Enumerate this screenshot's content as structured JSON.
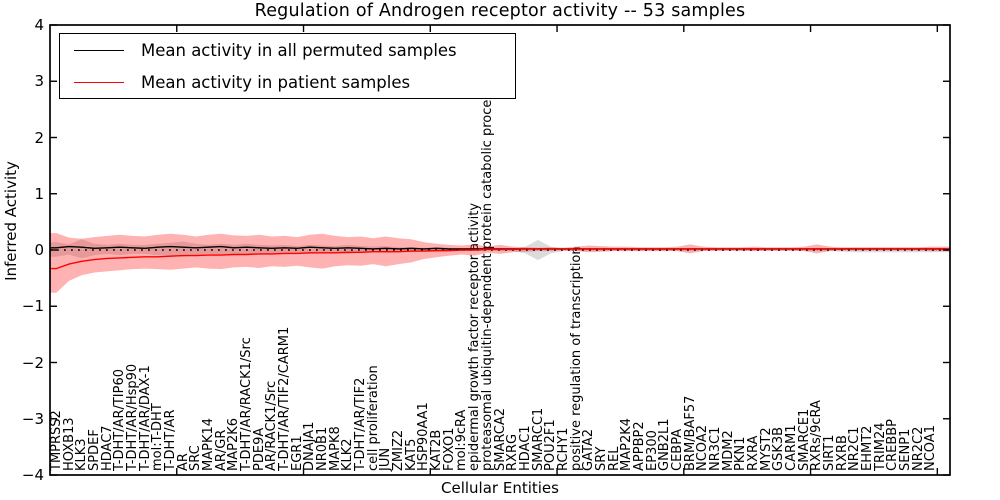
{
  "title": "Regulation of Androgen receptor activity -- 53 samples",
  "axes": {
    "x_label": "Cellular Entities",
    "y_label": "Inferred Activity",
    "y_ticks": [
      "4",
      "3",
      "2",
      "1",
      "0",
      "−1",
      "−2",
      "−3",
      "−4"
    ]
  },
  "legend": {
    "items": [
      {
        "label": "Mean activity in all permuted samples",
        "color": "#000000"
      },
      {
        "label": "Mean activity in patient samples",
        "color": "#ff0000"
      }
    ]
  },
  "chart_data": {
    "type": "line",
    "title": "Regulation of Androgen receptor activity -- 53 samples",
    "xlabel": "Cellular Entities",
    "ylabel": "Inferred Activity",
    "ylim": [
      -4,
      4
    ],
    "x_tick_label_rotation": 90,
    "x_major_tick_every": 10,
    "grid": false,
    "legend_position": "upper left",
    "categories": [
      "TMPRSS2",
      "HOXB13",
      "KLK3",
      "SPDEF",
      "HDAC7",
      "T-DHT/AR/TIP60",
      "T-DHT/AR/Hsp90",
      "T-DHT/AR/DAX-1",
      "mol:T-DHT",
      "T-DHT/AR",
      "AR",
      "SRC",
      "MAPK14",
      "AR/GR",
      "MAP2K6",
      "T-DHT/AR/RACK1/Src",
      "PDE9A",
      "AR/RACK1/Src",
      "T-DHT/AR/TIF2/CARM1",
      "EGR1",
      "DNAJA1",
      "NR0B1",
      "MAPK8",
      "KLK2",
      "T-DHT/AR/TIF2",
      "cell proliferation",
      "JUN",
      "ZMIZ2",
      "KAT5",
      "HSP90AA1",
      "KAT2B",
      "FOXO1",
      "mol:9cRA",
      "epidermal growth factor receptor activity",
      "proteasomal ubiquitin-dependent protein catabolic process",
      "SMARCA2",
      "RXRG",
      "HDAC1",
      "SMARCC1",
      "POU2F1",
      "RCHY1",
      "positive regulation of transcription",
      "GATA2",
      "SRY",
      "REL",
      "MAP2K4",
      "APPBP2",
      "EP300",
      "GNB2L1",
      "CEBPA",
      "BRM/BAF57",
      "NCOA2",
      "NR3C1",
      "MDM2",
      "PKN1",
      "RXRA",
      "MYST2",
      "GSK3B",
      "CARM1",
      "SMARCE1",
      "RXRs/9cRA",
      "SIRT1",
      "RXRB",
      "NR2C1",
      "EHMT2",
      "TRIM24",
      "CREBBP",
      "SENP1",
      "NR2C2",
      "NCOA1"
    ],
    "series": [
      {
        "name": "Mean activity in all permuted samples",
        "color": "#000000",
        "style": "solid",
        "values": [
          0.04,
          0.06,
          0.05,
          0.03,
          0.04,
          0.05,
          0.04,
          0.03,
          0.05,
          0.06,
          0.05,
          0.04,
          0.05,
          0.06,
          0.04,
          0.05,
          0.04,
          0.03,
          0.04,
          0.03,
          0.05,
          0.04,
          0.03,
          0.04,
          0.03,
          0.02,
          0.03,
          0.02,
          0.03,
          0.02,
          0.03,
          0.02,
          0.02,
          0.02,
          0.02,
          0.02,
          0.02,
          0.02,
          0.02,
          0.02,
          0.02,
          0.02,
          0.02,
          0.02,
          0.02,
          0.02,
          0.02,
          0.02,
          0.02,
          0.02,
          0.02,
          0.02,
          0.02,
          0.02,
          0.02,
          0.02,
          0.02,
          0.02,
          0.02,
          0.02,
          0.02,
          0.02,
          0.02,
          0.02,
          0.02,
          0.02,
          0.02,
          0.02,
          0.02,
          0.02
        ]
      },
      {
        "name": "Mean activity in patient samples",
        "color": "#ff0000",
        "style": "solid",
        "values": [
          -0.33,
          -0.25,
          -0.2,
          -0.17,
          -0.15,
          -0.14,
          -0.13,
          -0.12,
          -0.12,
          -0.11,
          -0.1,
          -0.1,
          -0.09,
          -0.09,
          -0.08,
          -0.08,
          -0.07,
          -0.07,
          -0.06,
          -0.06,
          -0.05,
          -0.05,
          -0.05,
          -0.04,
          -0.04,
          -0.03,
          -0.03,
          -0.03,
          -0.02,
          -0.02,
          -0.01,
          -0.01,
          0.0,
          0.0,
          0.01,
          0.01,
          0.01,
          0.02,
          0.02,
          0.02,
          0.02,
          0.02,
          0.02,
          0.02,
          0.02,
          0.02,
          0.02,
          0.02,
          0.02,
          0.02,
          0.02,
          0.02,
          0.02,
          0.02,
          0.02,
          0.02,
          0.02,
          0.02,
          0.02,
          0.02,
          0.02,
          0.02,
          0.02,
          0.02,
          0.02,
          0.02,
          0.02,
          0.02,
          0.02,
          0.02
        ]
      }
    ],
    "bands": [
      {
        "name": "permuted samples spread",
        "color": "#999999",
        "opacity": 0.35,
        "upper": [
          0.14,
          0.1,
          0.19,
          0.11,
          0.09,
          0.11,
          0.09,
          0.09,
          0.11,
          0.13,
          0.15,
          0.11,
          0.09,
          0.11,
          0.09,
          0.11,
          0.09,
          0.08,
          0.09,
          0.07,
          0.09,
          0.08,
          0.07,
          0.09,
          0.07,
          0.06,
          0.07,
          0.05,
          0.05,
          0.04,
          0.05,
          0.04,
          0.03,
          0.03,
          0.02,
          0.03,
          0.02,
          0.06,
          0.18,
          0.06,
          0.02,
          0.02,
          0.02,
          0.02,
          0.02,
          0.02,
          0.02,
          0.02,
          0.02,
          0.02,
          0.02,
          0.02,
          0.02,
          0.02,
          0.02,
          0.02,
          0.02,
          0.02,
          0.02,
          0.02,
          0.02,
          0.02,
          0.03,
          0.04,
          0.04,
          0.04,
          0.04,
          0.04,
          0.04,
          0.04
        ],
        "lower": [
          -0.12,
          -0.08,
          -0.15,
          -0.09,
          -0.07,
          -0.09,
          -0.07,
          -0.07,
          -0.09,
          -0.1,
          -0.12,
          -0.09,
          -0.07,
          -0.09,
          -0.07,
          -0.09,
          -0.07,
          -0.06,
          -0.07,
          -0.05,
          -0.07,
          -0.06,
          -0.05,
          -0.07,
          -0.05,
          -0.04,
          -0.05,
          -0.04,
          -0.04,
          -0.03,
          -0.04,
          -0.03,
          -0.02,
          -0.02,
          -0.02,
          -0.02,
          -0.02,
          -0.06,
          -0.18,
          -0.06,
          -0.02,
          -0.02,
          -0.02,
          -0.02,
          -0.02,
          -0.02,
          -0.02,
          -0.02,
          -0.02,
          -0.02,
          -0.02,
          -0.02,
          -0.02,
          -0.02,
          -0.02,
          -0.02,
          -0.02,
          -0.02,
          -0.02,
          -0.02,
          -0.02,
          -0.02,
          -0.03,
          -0.04,
          -0.04,
          -0.04,
          -0.04,
          -0.04,
          -0.04,
          -0.04
        ]
      },
      {
        "name": "patient samples spread",
        "color": "#ff0000",
        "opacity": 0.3,
        "upper": [
          0.3,
          0.22,
          0.2,
          0.23,
          0.25,
          0.27,
          0.25,
          0.24,
          0.27,
          0.29,
          0.27,
          0.24,
          0.27,
          0.29,
          0.26,
          0.25,
          0.27,
          0.24,
          0.25,
          0.23,
          0.27,
          0.29,
          0.25,
          0.23,
          0.24,
          0.21,
          0.24,
          0.21,
          0.19,
          0.14,
          0.11,
          0.09,
          0.08,
          0.1,
          0.06,
          0.09,
          0.06,
          0.05,
          0.04,
          0.05,
          0.04,
          0.06,
          0.08,
          0.07,
          0.06,
          0.06,
          0.05,
          0.05,
          0.05,
          0.06,
          0.1,
          0.06,
          0.05,
          0.05,
          0.05,
          0.06,
          0.05,
          0.05,
          0.05,
          0.06,
          0.1,
          0.06,
          0.05,
          0.05,
          0.05,
          0.05,
          0.05,
          0.05,
          0.05,
          0.06
        ],
        "lower": [
          -0.76,
          -0.55,
          -0.45,
          -0.4,
          -0.38,
          -0.36,
          -0.34,
          -0.33,
          -0.34,
          -0.35,
          -0.33,
          -0.31,
          -0.33,
          -0.34,
          -0.31,
          -0.3,
          -0.32,
          -0.29,
          -0.3,
          -0.28,
          -0.31,
          -0.33,
          -0.29,
          -0.27,
          -0.28,
          -0.25,
          -0.29,
          -0.25,
          -0.22,
          -0.16,
          -0.13,
          -0.1,
          -0.08,
          -0.1,
          -0.05,
          -0.07,
          -0.04,
          -0.03,
          -0.02,
          -0.02,
          -0.01,
          -0.02,
          -0.04,
          -0.03,
          -0.02,
          -0.02,
          -0.02,
          -0.02,
          -0.02,
          -0.02,
          -0.06,
          -0.02,
          -0.01,
          -0.01,
          -0.01,
          -0.02,
          -0.01,
          -0.01,
          -0.01,
          -0.02,
          -0.06,
          -0.02,
          -0.01,
          -0.01,
          -0.01,
          -0.01,
          -0.01,
          -0.01,
          -0.01,
          -0.02
        ]
      }
    ],
    "zero_line": {
      "y": 0,
      "style": "dotted",
      "color": "#000000"
    }
  }
}
